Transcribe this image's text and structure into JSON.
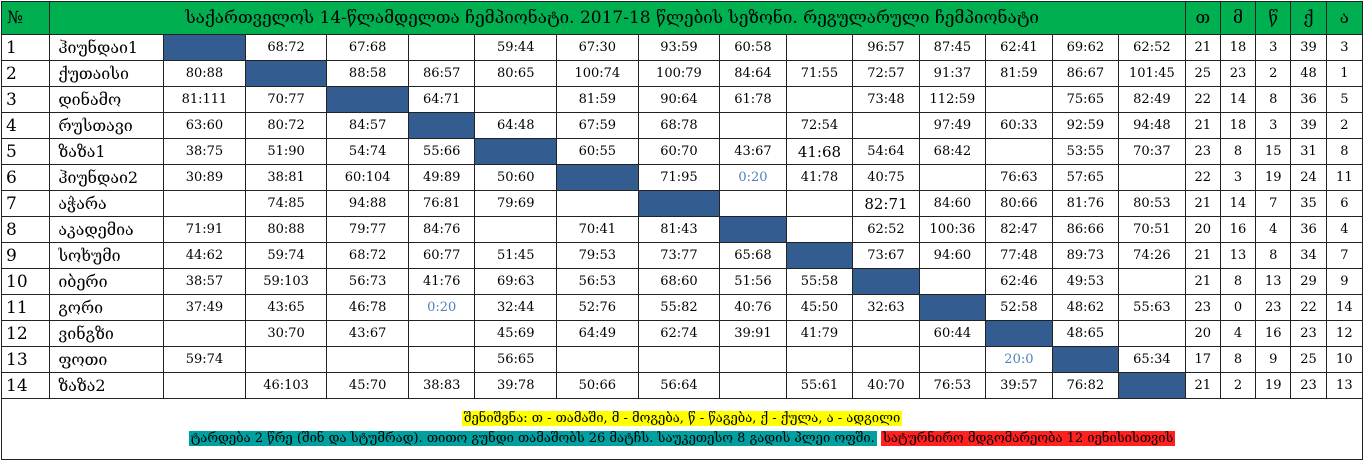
{
  "header": {
    "num_label": "№",
    "title": "საქართველოს 14-წლამდელთა ჩემპიონატი. 2017-18 წლების სეზონი. რეგულარული ჩემპიონატი",
    "stat_labels": [
      "თ",
      "მ",
      "წ",
      "ქ",
      "ა"
    ]
  },
  "rows": [
    {
      "num": "1",
      "team": "ჰიუნდაი1",
      "cells": [
        "",
        "68:72",
        "67:68",
        "",
        "59:44",
        "67:30",
        "93:59",
        "60:58",
        "",
        "96:57",
        "87:45",
        "62:41",
        "69:62",
        "62:52"
      ],
      "stats": [
        "21",
        "18",
        "3",
        "39",
        "3"
      ]
    },
    {
      "num": "2",
      "team": "ქუთაისი",
      "cells": [
        "80:88",
        "",
        "88:58",
        "86:57",
        "80:65",
        "100:74",
        "100:79",
        "84:64",
        "71:55",
        "72:57",
        "91:37",
        "81:59",
        "86:67",
        "101:45"
      ],
      "stats": [
        "25",
        "23",
        "2",
        "48",
        "1"
      ]
    },
    {
      "num": "3",
      "team": "დინამო",
      "cells": [
        "81:111",
        "70:77",
        "",
        "64:71",
        "",
        "81:59",
        "90:64",
        "61:78",
        "",
        "73:48",
        "112:59",
        "",
        "75:65",
        "82:49"
      ],
      "stats": [
        "22",
        "14",
        "8",
        "36",
        "5"
      ]
    },
    {
      "num": "4",
      "team": "რუსთავი",
      "cells": [
        "63:60",
        "80:72",
        "84:57",
        "",
        "64:48",
        "67:59",
        "68:78",
        "",
        "72:54",
        "",
        "97:49",
        "60:33",
        "92:59",
        "94:48"
      ],
      "stats": [
        "21",
        "18",
        "3",
        "39",
        "2"
      ]
    },
    {
      "num": "5",
      "team": "ზაზა1",
      "cells": [
        "38:75",
        "51:90",
        "54:74",
        "55:66",
        "",
        "60:55",
        "60:70",
        "43:67",
        "41:68",
        "54:64",
        "68:42",
        "",
        "53:55",
        "70:37"
      ],
      "stats": [
        "23",
        "8",
        "15",
        "31",
        "8"
      ]
    },
    {
      "num": "6",
      "team": "ჰიუნდაი2",
      "cells": [
        "30:89",
        "38:81",
        "60:104",
        "49:89",
        "50:60",
        "",
        "71:95",
        "0:20",
        "41:78",
        "40:75",
        "",
        "76:63",
        "57:65",
        ""
      ],
      "stats": [
        "22",
        "3",
        "19",
        "24",
        "11"
      ]
    },
    {
      "num": "7",
      "team": "აჭარა",
      "cells": [
        "",
        "74:85",
        "94:88",
        "76:81",
        "79:69",
        "",
        "",
        "",
        "",
        "82:71",
        "84:60",
        "80:66",
        "81:76",
        "80:53"
      ],
      "stats": [
        "21",
        "14",
        "7",
        "35",
        "6"
      ]
    },
    {
      "num": "8",
      "team": "აკადემია",
      "cells": [
        "71:91",
        "80:88",
        "79:77",
        "84:76",
        "",
        "70:41",
        "81:43",
        "",
        "",
        "62:52",
        "100:36",
        "82:47",
        "86:66",
        "70:51"
      ],
      "stats": [
        "20",
        "16",
        "4",
        "36",
        "4"
      ]
    },
    {
      "num": "9",
      "team": "სოხუმი",
      "cells": [
        "44:62",
        "59:74",
        "68:72",
        "60:77",
        "51:45",
        "79:53",
        "73:77",
        "65:68",
        "",
        "73:67",
        "94:60",
        "77:48",
        "89:73",
        "74:26"
      ],
      "stats": [
        "21",
        "13",
        "8",
        "34",
        "7"
      ]
    },
    {
      "num": "10",
      "team": "იბერი",
      "cells": [
        "38:57",
        "59:103",
        "56:73",
        "41:76",
        "69:63",
        "56:53",
        "68:60",
        "51:56",
        "55:58",
        "",
        "",
        "62:46",
        "49:53",
        ""
      ],
      "stats": [
        "21",
        "8",
        "13",
        "29",
        "9"
      ]
    },
    {
      "num": "11",
      "team": "გორი",
      "cells": [
        "37:49",
        "43:65",
        "46:78",
        "0:20",
        "32:44",
        "52:76",
        "55:82",
        "40:76",
        "45:50",
        "32:63",
        "",
        "52:58",
        "48:62",
        "55:63"
      ],
      "stats": [
        "23",
        "0",
        "23",
        "22",
        "14"
      ]
    },
    {
      "num": "12",
      "team": "ვინგზი",
      "cells": [
        "",
        "30:70",
        "43:67",
        "",
        "45:69",
        "64:49",
        "62:74",
        "39:91",
        "41:79",
        "",
        "60:44",
        "",
        "48:65",
        ""
      ],
      "stats": [
        "20",
        "4",
        "16",
        "23",
        "12"
      ]
    },
    {
      "num": "13",
      "team": "ფოთი",
      "cells": [
        "59:74",
        "",
        "",
        "",
        "56:65",
        "",
        "",
        "",
        "",
        "",
        "",
        "20:0",
        "",
        "65:34"
      ],
      "stats": [
        "17",
        "8",
        "9",
        "25",
        "10"
      ]
    },
    {
      "num": "14",
      "team": "ზაზა2",
      "cells": [
        "",
        "46:103",
        "45:70",
        "38:83",
        "39:78",
        "50:66",
        "56:64",
        "",
        "55:61",
        "40:70",
        "76:53",
        "39:57",
        "76:82",
        ""
      ],
      "stats": [
        "21",
        "2",
        "19",
        "23",
        "13"
      ]
    }
  ],
  "styles": {
    "diagonal_color": "#335c91",
    "header_color": "#00b050",
    "forfeit_text_color": "#4f81bd"
  },
  "footer": {
    "legend": "შენიშვნა: თ - თამაში, მ - მოგება, წ - წაგება, ქ - ქულა, ა - ადგილი",
    "rules": "ტარდება 2 წრე (შინ და სტუმრად). თითო გუნდი თამაშობს 26 მატჩს. საუკეთესო 8 გადის პლეი ოფში.",
    "status": "სატურნირო მდგომარეობა 12 იენისისთვის"
  }
}
